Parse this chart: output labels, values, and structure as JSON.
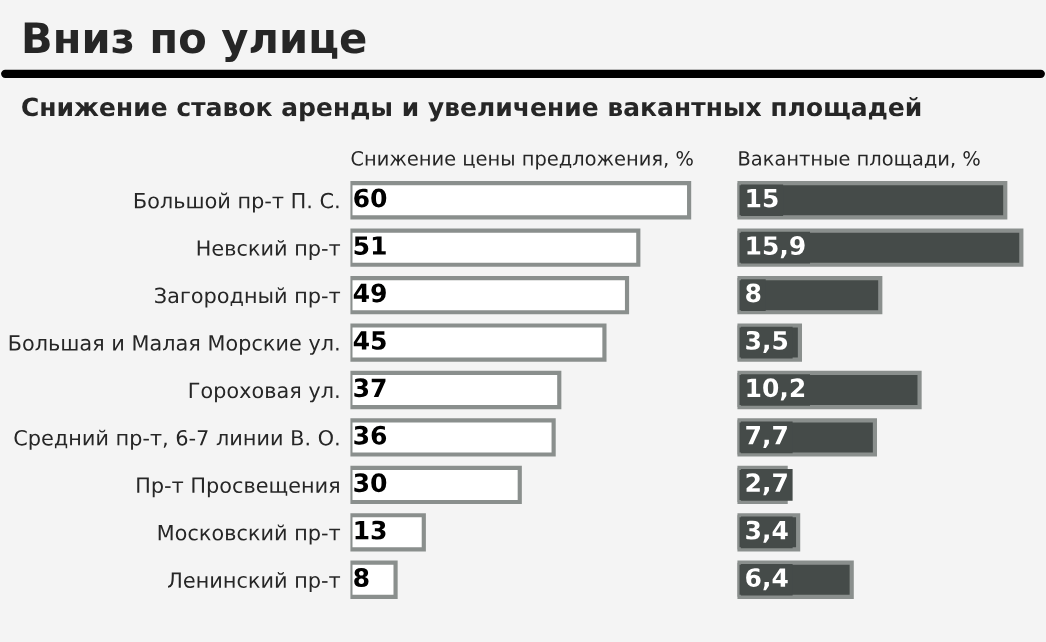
{
  "chart_data": [
    {
      "type": "bar",
      "orientation": "horizontal",
      "title": "Вниз по улице",
      "subtitle": "Снижение ставок аренды и увеличение вакантных площадей",
      "xlabel": "Снижение цены предложения, %",
      "categories": [
        "Большой пр-т П. С.",
        "Невский пр-т",
        "Загородный пр-т",
        "Большая и Малая Морские ул.",
        "Гороховая ул.",
        "Средний пр-т, 6-7 линии В. О.",
        "Пр-т Просвещения",
        "Московский пр-т",
        "Ленинский пр-т"
      ],
      "values": [
        60,
        51,
        49,
        45,
        37,
        36,
        30,
        13,
        8
      ],
      "color": "#ffffff",
      "data_labels": true
    },
    {
      "type": "bar",
      "orientation": "horizontal",
      "xlabel": "Вакантные площади, %",
      "values": [
        15,
        15.9,
        8,
        3.5,
        10.2,
        7.7,
        2.7,
        3.4,
        6.4
      ],
      "value_labels": [
        "15",
        "15,9",
        "8",
        "3,5",
        "10,2",
        "7,7",
        "2,7",
        "3,4",
        "6,4"
      ],
      "color": "#454b49"
    }
  ]
}
